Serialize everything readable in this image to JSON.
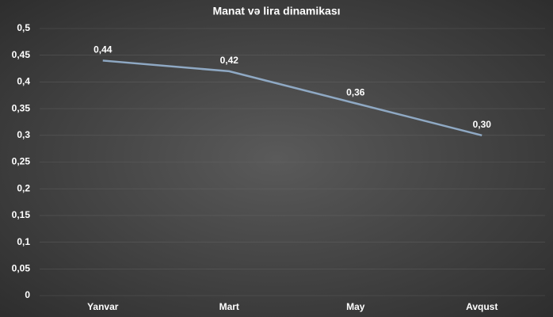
{
  "chart_data": {
    "type": "line",
    "title": "Manat və lira dinamikası",
    "categories": [
      "Yanvar",
      "Mart",
      "May",
      "Avqust"
    ],
    "series": [
      {
        "name": "Manat və lira",
        "color": "#8fa9c4",
        "values": [
          0.44,
          0.42,
          0.36,
          0.3
        ],
        "value_labels": [
          "0,44",
          "0,42",
          "0,36",
          "0,30"
        ]
      }
    ],
    "ylim": [
      0,
      0.5
    ],
    "yticks": [
      0,
      {
        "value": 0.05,
        "label": "0,05"
      },
      {
        "value": 0.1,
        "label": "0,1"
      },
      {
        "value": 0.15,
        "label": "0,15"
      },
      {
        "value": 0.2,
        "label": "0,2"
      },
      {
        "value": 0.25,
        "label": "0,25"
      },
      {
        "value": 0.3,
        "label": "0,3"
      },
      {
        "value": 0.35,
        "label": "0,35"
      },
      {
        "value": 0.4,
        "label": "0,4"
      },
      {
        "value": 0.45,
        "label": "0,45"
      },
      {
        "value": 0.5,
        "label": "0,5"
      }
    ],
    "grid": true
  }
}
